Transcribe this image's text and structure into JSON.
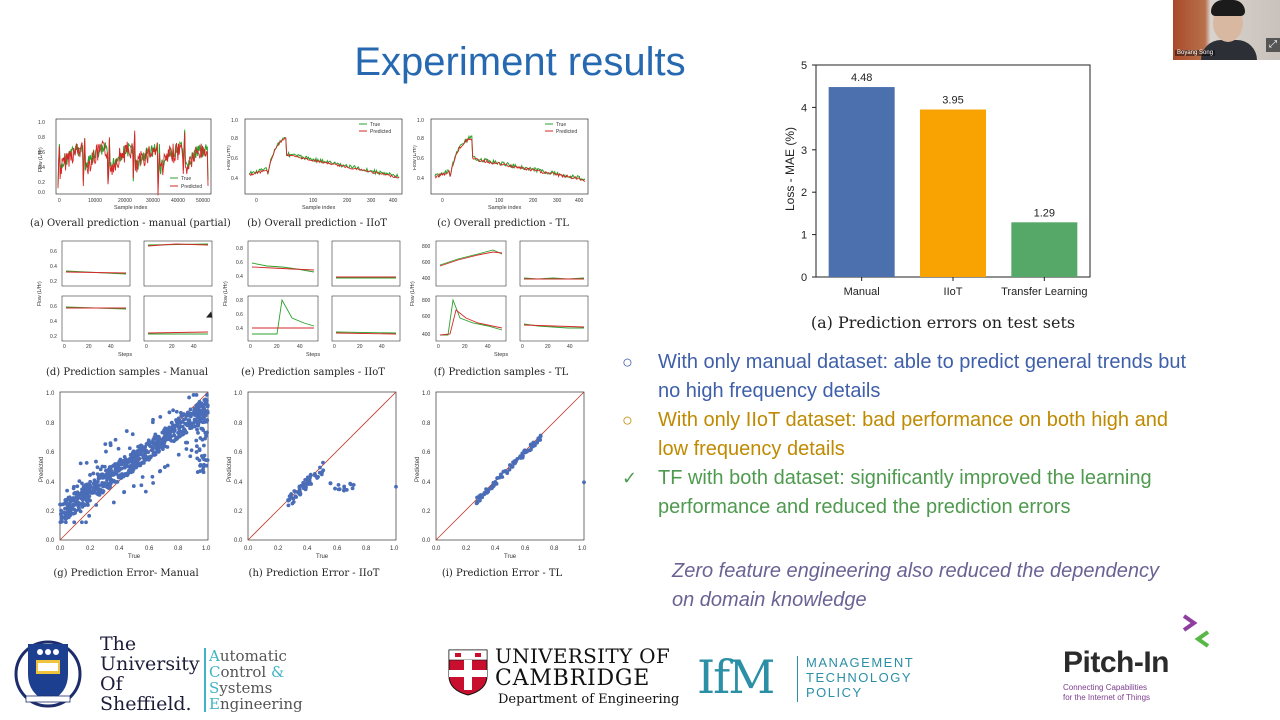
{
  "slide": {
    "title": "Experiment results"
  },
  "figures": {
    "captions": {
      "a": "(a) Overall prediction - manual (partial)",
      "b": "(b) Overall prediction - IIoT",
      "c": "(c) Overall prediction - TL",
      "d": "(d) Prediction samples - Manual",
      "e": "(e) Prediction samples - IIoT",
      "f": "(f) Prediction samples - TL",
      "g": "(g) Prediction Error- Manual",
      "h": "(h) Prediction Error - IIoT",
      "i": "(i) Prediction Error - TL"
    },
    "legend_true": "True",
    "legend_predicted": "Predicted",
    "xlabel_sample": "Sample index",
    "xlabel_steps": "Steps",
    "ylabel_flow": "Flow (L/Hr)",
    "xlabel_true": "True",
    "ylabel_predicted": "Predicted",
    "colors": {
      "true": "#2ca02c",
      "predicted": "#d62728",
      "scatter": "#4a6db8",
      "diag": "#c0392b"
    }
  },
  "chart_data": {
    "type": "bar",
    "categories": [
      "Manual",
      "IIoT",
      "Transfer Learning"
    ],
    "values": [
      4.48,
      3.95,
      1.29
    ],
    "value_labels": [
      "4.48",
      "3.95",
      "1.29"
    ],
    "colors": [
      "#4c6fae",
      "#f9a303",
      "#55a868"
    ],
    "ylabel": "Loss - MAE (%)",
    "ylim": [
      0,
      5
    ],
    "yticks": [
      0,
      1,
      2,
      3,
      4,
      5
    ],
    "caption": "(a) Prediction errors on test sets"
  },
  "bullets": [
    {
      "mark": "○",
      "text_1": "With only manual dataset: able to predict general trends but",
      "text_2": "no high frequency details"
    },
    {
      "mark": "○",
      "text_1": "With only IIoT dataset: bad performance on both high and",
      "text_2": "low frequency details"
    },
    {
      "mark": "✓",
      "text_1": "TF with both dataset: significantly improved the learning",
      "text_2": "performance and reduced the prediction errors"
    }
  ],
  "note": {
    "line1": "Zero feature engineering also reduced the dependency",
    "line2": "on domain knowledge"
  },
  "webcam": {
    "name": "Boyang Song"
  },
  "logos": {
    "sheffield": [
      "The",
      "University",
      "Of",
      "Sheffield."
    ],
    "acse": [
      "utomatic",
      "ontrol",
      "ystems",
      "ngineering"
    ],
    "acse_initials": [
      "A",
      "C",
      "S",
      "E"
    ],
    "acse_amp": "&",
    "cambridge_l1": "UNIVERSITY OF",
    "cambridge_l2": "CAMBRIDGE",
    "cambridge_l3": "Department of Engineering",
    "ifm": "IfM",
    "ifm_words": [
      "MANAGEMENT",
      "TECHNOLOGY",
      "POLICY"
    ],
    "pitch": "Pitch-In",
    "pitch_sub_1": "Connecting Capabilities",
    "pitch_sub_2": "for the Internet of Things"
  }
}
